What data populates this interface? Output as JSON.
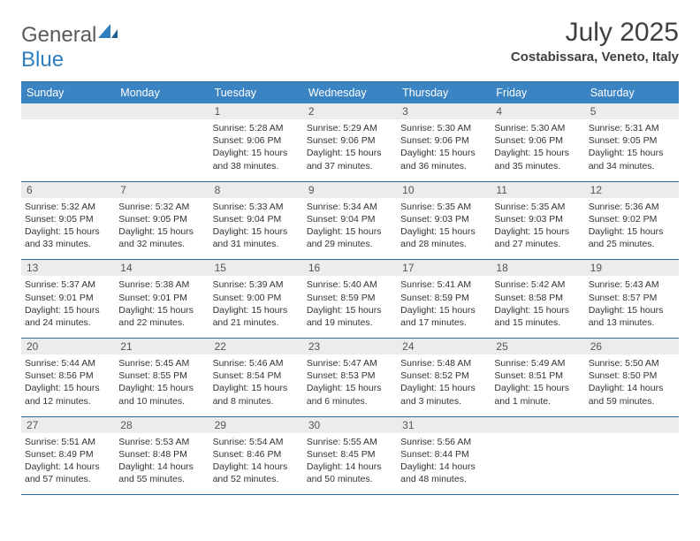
{
  "logo": {
    "text_gray": "General",
    "text_blue": "Blue"
  },
  "title": "July 2025",
  "location": "Costabissara, Veneto, Italy",
  "colors": {
    "header_bg": "#3b84c4",
    "header_text": "#ffffff",
    "daynum_bg": "#ececec",
    "border": "#2e6a9e",
    "logo_gray": "#5a5a5a",
    "logo_blue": "#2f7fc0"
  },
  "day_names": [
    "Sunday",
    "Monday",
    "Tuesday",
    "Wednesday",
    "Thursday",
    "Friday",
    "Saturday"
  ],
  "weeks": [
    {
      "nums": [
        "",
        "",
        "1",
        "2",
        "3",
        "4",
        "5"
      ],
      "cells": [
        "",
        "",
        "Sunrise: 5:28 AM\nSunset: 9:06 PM\nDaylight: 15 hours and 38 minutes.",
        "Sunrise: 5:29 AM\nSunset: 9:06 PM\nDaylight: 15 hours and 37 minutes.",
        "Sunrise: 5:30 AM\nSunset: 9:06 PM\nDaylight: 15 hours and 36 minutes.",
        "Sunrise: 5:30 AM\nSunset: 9:06 PM\nDaylight: 15 hours and 35 minutes.",
        "Sunrise: 5:31 AM\nSunset: 9:05 PM\nDaylight: 15 hours and 34 minutes."
      ]
    },
    {
      "nums": [
        "6",
        "7",
        "8",
        "9",
        "10",
        "11",
        "12"
      ],
      "cells": [
        "Sunrise: 5:32 AM\nSunset: 9:05 PM\nDaylight: 15 hours and 33 minutes.",
        "Sunrise: 5:32 AM\nSunset: 9:05 PM\nDaylight: 15 hours and 32 minutes.",
        "Sunrise: 5:33 AM\nSunset: 9:04 PM\nDaylight: 15 hours and 31 minutes.",
        "Sunrise: 5:34 AM\nSunset: 9:04 PM\nDaylight: 15 hours and 29 minutes.",
        "Sunrise: 5:35 AM\nSunset: 9:03 PM\nDaylight: 15 hours and 28 minutes.",
        "Sunrise: 5:35 AM\nSunset: 9:03 PM\nDaylight: 15 hours and 27 minutes.",
        "Sunrise: 5:36 AM\nSunset: 9:02 PM\nDaylight: 15 hours and 25 minutes."
      ]
    },
    {
      "nums": [
        "13",
        "14",
        "15",
        "16",
        "17",
        "18",
        "19"
      ],
      "cells": [
        "Sunrise: 5:37 AM\nSunset: 9:01 PM\nDaylight: 15 hours and 24 minutes.",
        "Sunrise: 5:38 AM\nSunset: 9:01 PM\nDaylight: 15 hours and 22 minutes.",
        "Sunrise: 5:39 AM\nSunset: 9:00 PM\nDaylight: 15 hours and 21 minutes.",
        "Sunrise: 5:40 AM\nSunset: 8:59 PM\nDaylight: 15 hours and 19 minutes.",
        "Sunrise: 5:41 AM\nSunset: 8:59 PM\nDaylight: 15 hours and 17 minutes.",
        "Sunrise: 5:42 AM\nSunset: 8:58 PM\nDaylight: 15 hours and 15 minutes.",
        "Sunrise: 5:43 AM\nSunset: 8:57 PM\nDaylight: 15 hours and 13 minutes."
      ]
    },
    {
      "nums": [
        "20",
        "21",
        "22",
        "23",
        "24",
        "25",
        "26"
      ],
      "cells": [
        "Sunrise: 5:44 AM\nSunset: 8:56 PM\nDaylight: 15 hours and 12 minutes.",
        "Sunrise: 5:45 AM\nSunset: 8:55 PM\nDaylight: 15 hours and 10 minutes.",
        "Sunrise: 5:46 AM\nSunset: 8:54 PM\nDaylight: 15 hours and 8 minutes.",
        "Sunrise: 5:47 AM\nSunset: 8:53 PM\nDaylight: 15 hours and 6 minutes.",
        "Sunrise: 5:48 AM\nSunset: 8:52 PM\nDaylight: 15 hours and 3 minutes.",
        "Sunrise: 5:49 AM\nSunset: 8:51 PM\nDaylight: 15 hours and 1 minute.",
        "Sunrise: 5:50 AM\nSunset: 8:50 PM\nDaylight: 14 hours and 59 minutes."
      ]
    },
    {
      "nums": [
        "27",
        "28",
        "29",
        "30",
        "31",
        "",
        ""
      ],
      "cells": [
        "Sunrise: 5:51 AM\nSunset: 8:49 PM\nDaylight: 14 hours and 57 minutes.",
        "Sunrise: 5:53 AM\nSunset: 8:48 PM\nDaylight: 14 hours and 55 minutes.",
        "Sunrise: 5:54 AM\nSunset: 8:46 PM\nDaylight: 14 hours and 52 minutes.",
        "Sunrise: 5:55 AM\nSunset: 8:45 PM\nDaylight: 14 hours and 50 minutes.",
        "Sunrise: 5:56 AM\nSunset: 8:44 PM\nDaylight: 14 hours and 48 minutes.",
        "",
        ""
      ]
    }
  ]
}
